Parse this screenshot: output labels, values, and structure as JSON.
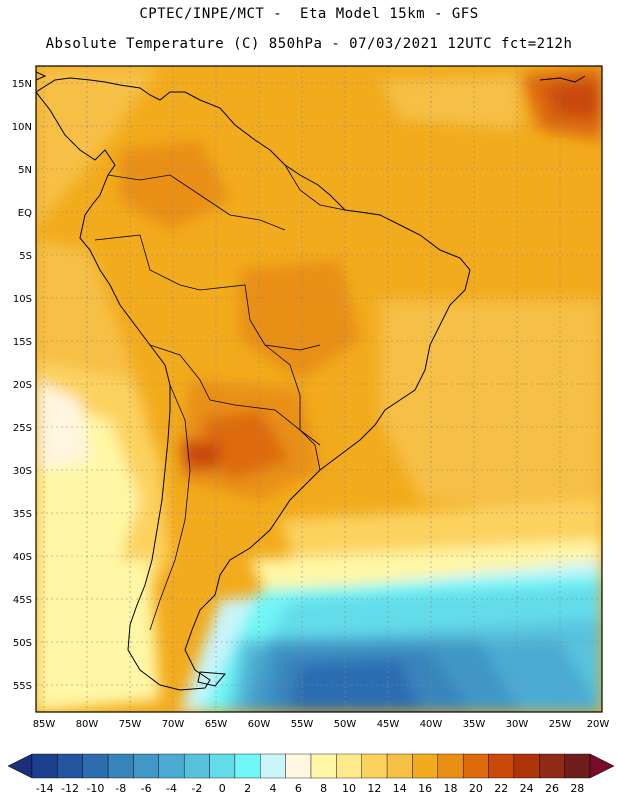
{
  "title_line1": "CPTEC/INPE/MCT -  Eta Model 15km - GFS",
  "title_line2": "Absolute Temperature (C) 850hPa - 07/03/2021 12UTC fct=212h",
  "lat_labels": [
    "15N",
    "10N",
    "5N",
    "EQ",
    "5S",
    "10S",
    "15S",
    "20S",
    "25S",
    "30S",
    "35S",
    "40S",
    "45S",
    "50S",
    "55S"
  ],
  "lon_labels": [
    "85W",
    "80W",
    "75W",
    "70W",
    "65W",
    "60W",
    "55W",
    "50W",
    "45W",
    "40W",
    "35W",
    "30W",
    "25W",
    "20W"
  ],
  "colorbar": {
    "levels": [
      "-14",
      "-12",
      "-10",
      "-8",
      "-6",
      "-4",
      "-2",
      "0",
      "2",
      "4",
      "6",
      "8",
      "10",
      "12",
      "14",
      "16",
      "18",
      "20",
      "22",
      "24",
      "26",
      "28"
    ],
    "colors": [
      "#1d3f8f",
      "#2456a0",
      "#2c6db0",
      "#3784bd",
      "#4197c6",
      "#4cabd2",
      "#58c2de",
      "#63dcea",
      "#6ff6f6",
      "#c8f4fa",
      "#fff6e0",
      "#fff7a6",
      "#ffe98a",
      "#fcd25e",
      "#f6bf45",
      "#f2ab1c",
      "#e98f16",
      "#dd6a0a",
      "#c94a08",
      "#b0340a",
      "#8e2a16",
      "#6e1d1a"
    ],
    "under_color": "#1a2f7a",
    "over_color": "#7a0a2a"
  }
}
